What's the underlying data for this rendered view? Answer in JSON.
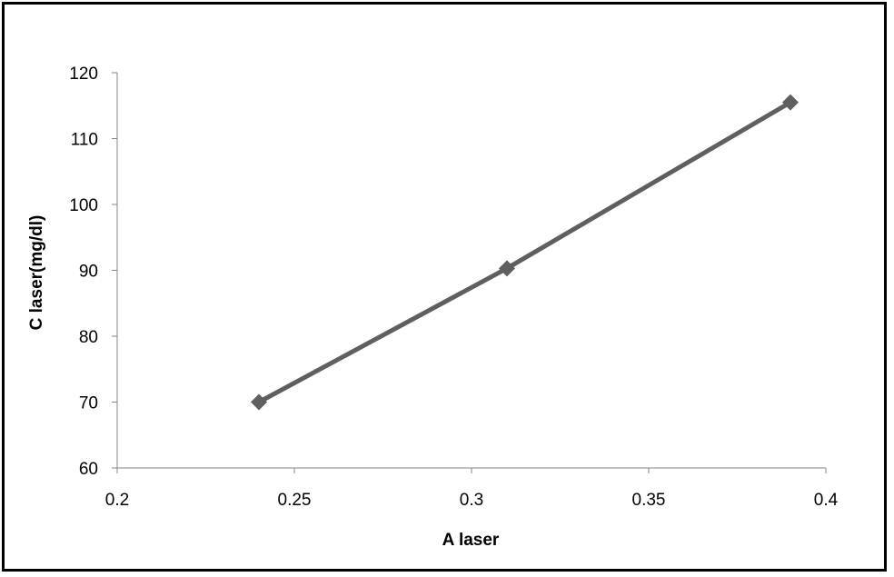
{
  "chart_data": {
    "type": "line",
    "title": "",
    "xlabel": "A laser",
    "ylabel": "C laser(mg/dl)",
    "xlim": [
      0.2,
      0.4
    ],
    "ylim": [
      60,
      120
    ],
    "xticks": [
      0.2,
      0.25,
      0.3,
      0.35,
      0.4
    ],
    "xtick_labels": [
      "0.2",
      "0.25",
      "0.3",
      "0.35",
      "0.4"
    ],
    "yticks": [
      60,
      70,
      80,
      90,
      100,
      110,
      120
    ],
    "ytick_labels": [
      "60",
      "70",
      "80",
      "90",
      "100",
      "110",
      "120"
    ],
    "grid": false,
    "legend": "none",
    "marker": "diamond",
    "series": [
      {
        "x": [
          0.24,
          0.31,
          0.39
        ],
        "y": [
          70,
          90.3,
          115.5
        ],
        "color": "#5f5f5f"
      }
    ]
  }
}
